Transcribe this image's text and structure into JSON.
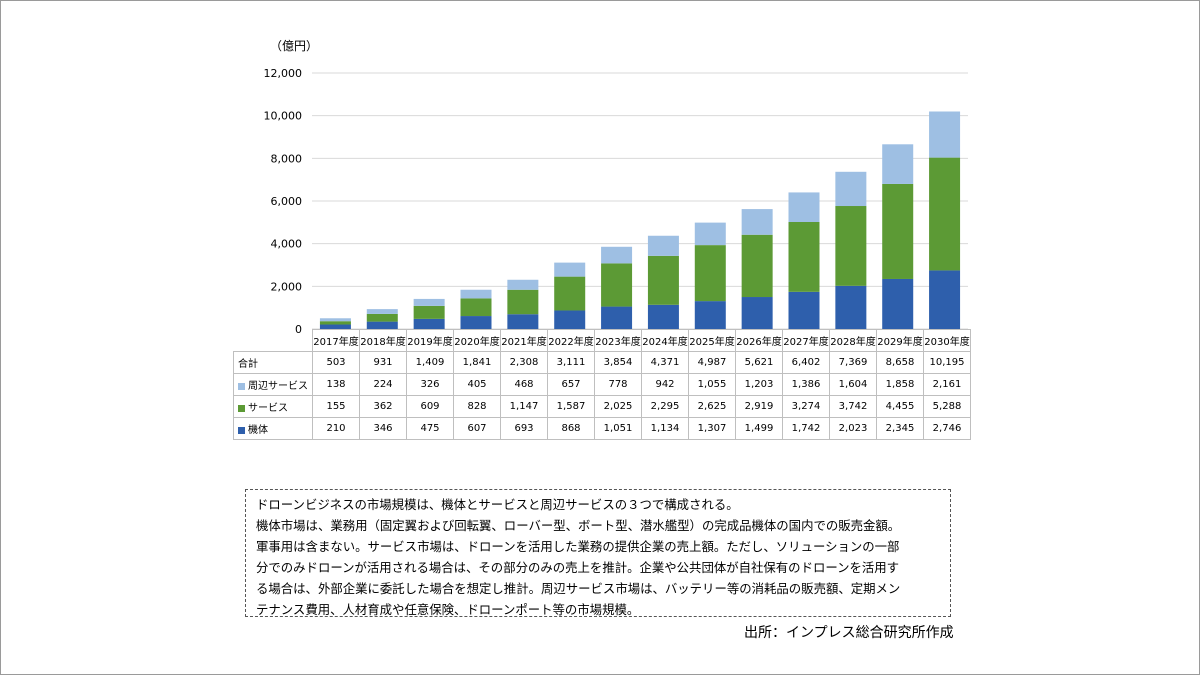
{
  "chart_data": {
    "type": "bar",
    "stacked": true,
    "unit_label": "（億円）",
    "y_ticks": [
      "12,000",
      "10,000",
      "8,000",
      "6,000",
      "4,000",
      "2,000",
      "0"
    ],
    "ylim": [
      0,
      12000
    ],
    "grid": true,
    "categories": [
      "2017年度",
      "2018年度",
      "2019年度",
      "2020年度",
      "2021年度",
      "2022年度",
      "2023年度",
      "2024年度",
      "2025年度",
      "2026年度",
      "2027年度",
      "2028年度",
      "2029年度",
      "2030年度"
    ],
    "series": [
      {
        "name": "機体",
        "color": "#2e5fac",
        "values": [
          210,
          346,
          475,
          607,
          693,
          868,
          1051,
          1134,
          1307,
          1499,
          1742,
          2023,
          2345,
          2746
        ],
        "labels": [
          "210",
          "346",
          "475",
          "607",
          "693",
          "868",
          "1,051",
          "1,134",
          "1,307",
          "1,499",
          "1,742",
          "2,023",
          "2,345",
          "2,746"
        ]
      },
      {
        "name": "サービス",
        "color": "#5c9a35",
        "values": [
          155,
          362,
          609,
          828,
          1147,
          1587,
          2025,
          2295,
          2625,
          2919,
          3274,
          3742,
          4455,
          5288
        ],
        "labels": [
          "155",
          "362",
          "609",
          "828",
          "1,147",
          "1,587",
          "2,025",
          "2,295",
          "2,625",
          "2,919",
          "3,274",
          "3,742",
          "4,455",
          "5,288"
        ]
      },
      {
        "name": "周辺サービス",
        "color": "#9ebfe3",
        "values": [
          138,
          224,
          326,
          405,
          468,
          657,
          778,
          942,
          1055,
          1203,
          1386,
          1604,
          1858,
          2161
        ],
        "labels": [
          "138",
          "224",
          "326",
          "405",
          "468",
          "657",
          "778",
          "942",
          "1,055",
          "1,203",
          "1,386",
          "1,604",
          "1,858",
          "2,161"
        ]
      }
    ],
    "totals": {
      "name": "合計",
      "labels": [
        "503",
        "931",
        "1,409",
        "1,841",
        "2,308",
        "3,111",
        "3,854",
        "4,371",
        "4,987",
        "5,621",
        "6,402",
        "7,369",
        "8,658",
        "10,195"
      ]
    }
  },
  "note": {
    "lines": [
      "ドローンビジネスの市場規模は、機体とサービスと周辺サービスの３つで構成される。",
      "機体市場は、業務用（固定翼および回転翼、ローバー型、ボート型、潜水艦型）の完成品機体の国内での販売金額。",
      "軍事用は含まない。サービス市場は、ドローンを活用した業務の提供企業の売上額。ただし、ソリューションの一部",
      "分でのみドローンが活用される場合は、その部分のみの売上を推計。企業や公共団体が自社保有のドローンを活用す",
      "る場合は、外部企業に委託した場合を想定し推計。周辺サービス市場は、バッテリー等の消耗品の販売額、定期メン",
      "テナンス費用、人材育成や任意保険、ドローンポート等の市場規模。"
    ]
  },
  "source": "出所：インプレス総合研究所作成"
}
